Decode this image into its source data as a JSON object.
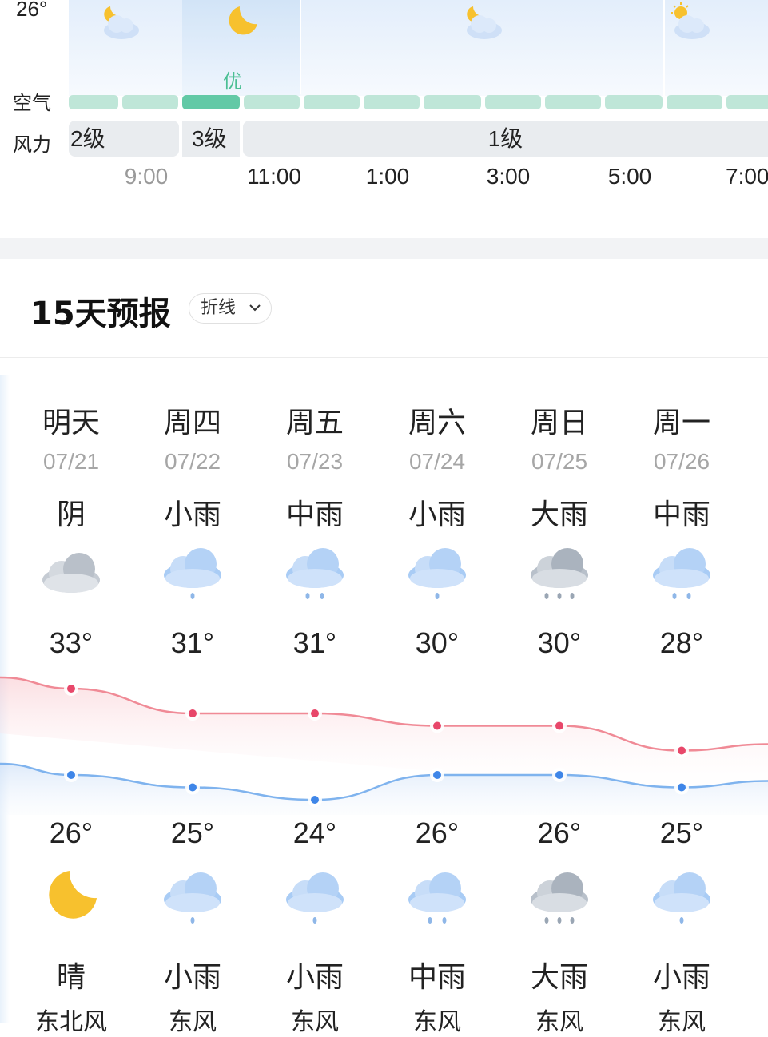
{
  "hourly": {
    "top_temp_label": "26°",
    "air_label": "空气",
    "wind_label": "风力",
    "aqi_selected_label": "优",
    "wind_segments": [
      "2级",
      "3级",
      "1级"
    ],
    "times": [
      "9:00",
      "11:00",
      "1:00",
      "3:00",
      "5:00",
      "7:00"
    ],
    "icons": [
      "partly-cloudy-night-icon",
      "moon-icon",
      "partly-cloudy-night-icon",
      "partly-cloudy-day-icon"
    ]
  },
  "forecast": {
    "title": "15天预报",
    "mode_label": "折线",
    "days": [
      {
        "weekday": "明天",
        "date": "07/21",
        "day_cond": "阴",
        "day_icon": "overcast-cloud-icon",
        "high": "33°",
        "low": "26°",
        "night_icon": "moon-icon",
        "night_cond": "晴",
        "wind": "东北风"
      },
      {
        "weekday": "周四",
        "date": "07/22",
        "day_cond": "小雨",
        "day_icon": "light-rain-icon",
        "high": "31°",
        "low": "25°",
        "night_icon": "light-rain-icon",
        "night_cond": "小雨",
        "wind": "东风"
      },
      {
        "weekday": "周五",
        "date": "07/23",
        "day_cond": "中雨",
        "day_icon": "moderate-rain-icon",
        "high": "31°",
        "low": "24°",
        "night_icon": "light-rain-icon",
        "night_cond": "小雨",
        "wind": "东风"
      },
      {
        "weekday": "周六",
        "date": "07/24",
        "day_cond": "小雨",
        "day_icon": "light-rain-icon",
        "high": "30°",
        "low": "26°",
        "night_icon": "moderate-rain-icon",
        "night_cond": "中雨",
        "wind": "东风"
      },
      {
        "weekday": "周日",
        "date": "07/25",
        "day_cond": "大雨",
        "day_icon": "heavy-rain-icon",
        "high": "30°",
        "low": "26°",
        "night_icon": "heavy-rain-icon",
        "night_cond": "大雨",
        "wind": "东风"
      },
      {
        "weekday": "周一",
        "date": "07/26",
        "day_cond": "中雨",
        "day_icon": "moderate-rain-icon",
        "high": "28°",
        "low": "25°",
        "night_icon": "light-rain-icon",
        "night_cond": "小雨",
        "wind": "东风"
      }
    ],
    "highs": [
      33,
      31,
      31,
      30,
      30,
      28
    ],
    "lows": [
      26,
      25,
      24,
      26,
      26,
      25
    ]
  },
  "colors": {
    "high_line": "#f08a96",
    "high_dot": "#e8476a",
    "low_line": "#7fb3ee",
    "low_dot": "#3f86e8",
    "aqi_good": "#62c9a6"
  }
}
